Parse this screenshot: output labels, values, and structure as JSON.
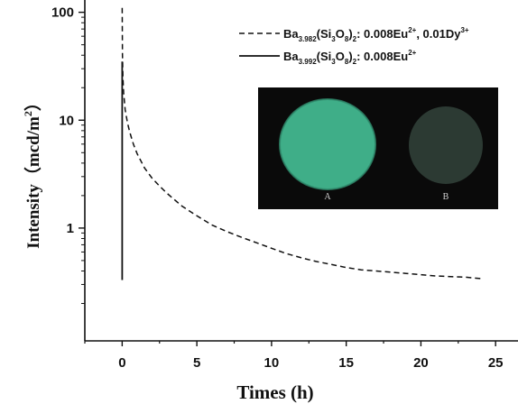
{
  "chart_data": {
    "type": "line",
    "xlabel": "Times (h)",
    "ylabel": "Intensity（mcd/m",
    "ylabel_unit_sup": "2",
    "ylabel_close": "）",
    "yscale": "log",
    "xlim": [
      -2.5,
      26.5
    ],
    "ylim": [
      0.09,
      130
    ],
    "xticks": [
      0,
      5,
      10,
      15,
      20,
      25
    ],
    "yticks": [
      1,
      10,
      100
    ],
    "ytick_labels": [
      "1",
      "10",
      "100"
    ],
    "grid": false,
    "legend_position": "top-right",
    "series": [
      {
        "name_parts": [
          {
            "t": "Ba",
            "s": ""
          },
          {
            "t": "3.982",
            "s": "sub"
          },
          {
            "t": "(Si",
            "s": ""
          },
          {
            "t": "3",
            "s": "sub"
          },
          {
            "t": "O",
            "s": ""
          },
          {
            "t": "8",
            "s": "sub"
          },
          {
            "t": ")",
            "s": ""
          },
          {
            "t": "2",
            "s": "sub"
          },
          {
            "t": ": 0.008Eu",
            "s": ""
          },
          {
            "t": "2+",
            "s": "sup"
          },
          {
            "t": ", 0.01Dy",
            "s": ""
          },
          {
            "t": "3+",
            "s": "sup"
          }
        ],
        "style": "dashed",
        "color": "#111111",
        "x": [
          0,
          0.02,
          0.05,
          0.1,
          0.2,
          0.35,
          0.5,
          0.75,
          1,
          1.5,
          2,
          2.5,
          3,
          4,
          5,
          6,
          7,
          8,
          9,
          10,
          11,
          12,
          13,
          14,
          15,
          16,
          17,
          18,
          19,
          20,
          21,
          22,
          23,
          24
        ],
        "y": [
          110,
          40,
          25,
          18,
          12.5,
          9.5,
          7.8,
          6.0,
          4.9,
          3.6,
          2.9,
          2.45,
          2.1,
          1.6,
          1.3,
          1.07,
          0.93,
          0.82,
          0.73,
          0.65,
          0.58,
          0.53,
          0.49,
          0.46,
          0.43,
          0.41,
          0.4,
          0.39,
          0.38,
          0.37,
          0.36,
          0.355,
          0.35,
          0.34
        ]
      },
      {
        "name_parts": [
          {
            "t": "Ba",
            "s": ""
          },
          {
            "t": "3.992",
            "s": "sub"
          },
          {
            "t": "(Si",
            "s": ""
          },
          {
            "t": "3",
            "s": "sub"
          },
          {
            "t": "O",
            "s": ""
          },
          {
            "t": "8",
            "s": "sub"
          },
          {
            "t": ")",
            "s": ""
          },
          {
            "t": "2",
            "s": "sub"
          },
          {
            "t": ": 0.008Eu",
            "s": ""
          },
          {
            "t": "2+",
            "s": "sup"
          }
        ],
        "style": "solid",
        "color": "#111111",
        "x": [
          0,
          0,
          0,
          0
        ],
        "y": [
          35,
          0.5,
          3,
          0.33
        ]
      }
    ],
    "inset": {
      "labels": [
        "A",
        "B"
      ],
      "colors": {
        "background": "#0a0a0a",
        "sample_a": "#3fae88",
        "sample_b": "#2c3a33"
      }
    }
  }
}
